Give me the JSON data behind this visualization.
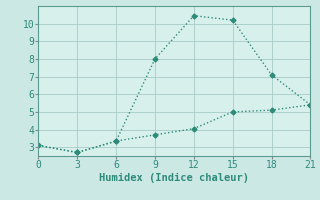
{
  "x": [
    0,
    3,
    6,
    9,
    12,
    15,
    18,
    21
  ],
  "y_upper": [
    3.1,
    2.7,
    3.35,
    8.0,
    10.45,
    10.2,
    7.1,
    5.4
  ],
  "y_lower": [
    3.1,
    2.7,
    3.35,
    3.7,
    4.05,
    5.0,
    5.1,
    5.4
  ],
  "line_color": "#2e8b7a",
  "bg_color": "#cce8e4",
  "plot_bg": "#d8f0ec",
  "xlabel": "Humidex (Indice chaleur)",
  "xlim": [
    0,
    21
  ],
  "ylim": [
    2.5,
    11.0
  ],
  "xticks": [
    0,
    3,
    6,
    9,
    12,
    15,
    18,
    21
  ],
  "yticks": [
    3,
    4,
    5,
    6,
    7,
    8,
    9,
    10
  ],
  "marker": "D",
  "markersize": 2.5,
  "linewidth": 1.0,
  "xlabel_fontsize": 7.5,
  "tick_fontsize": 7
}
